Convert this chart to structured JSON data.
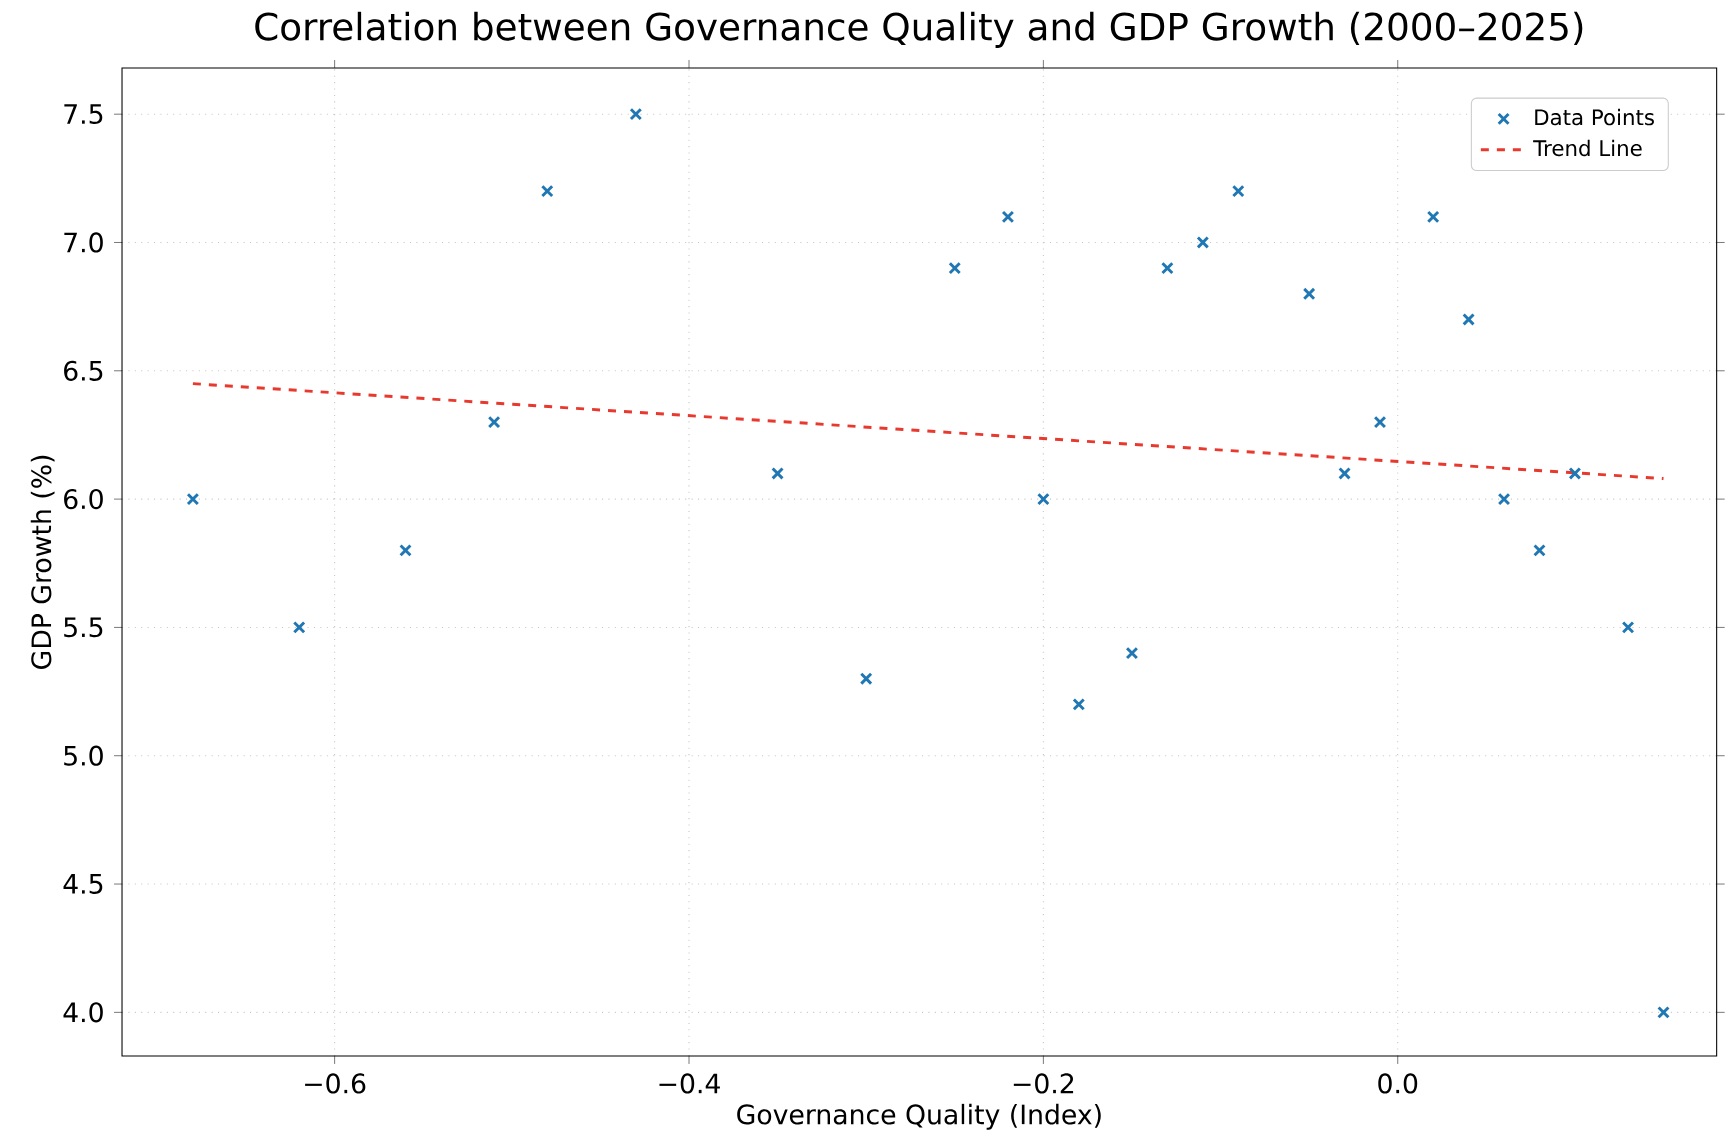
{
  "chart_data": {
    "type": "scatter",
    "title": "Correlation between Governance Quality and GDP Growth (2000–2025)",
    "xlabel": "Governance Quality (Index)",
    "ylabel": "GDP Growth (%)",
    "xlim": [
      -0.72,
      0.18
    ],
    "ylim": [
      3.83,
      7.68
    ],
    "xticks": [
      {
        "value": -0.6,
        "label": "−0.6"
      },
      {
        "value": -0.4,
        "label": "−0.4"
      },
      {
        "value": -0.2,
        "label": "−0.2"
      },
      {
        "value": 0.0,
        "label": "0.0"
      }
    ],
    "yticks": [
      {
        "value": 4.0,
        "label": "4.0"
      },
      {
        "value": 4.5,
        "label": "4.5"
      },
      {
        "value": 5.0,
        "label": "5.0"
      },
      {
        "value": 5.5,
        "label": "5.5"
      },
      {
        "value": 6.0,
        "label": "6.0"
      },
      {
        "value": 6.5,
        "label": "6.5"
      },
      {
        "value": 7.0,
        "label": "7.0"
      },
      {
        "value": 7.5,
        "label": "7.5"
      }
    ],
    "grid": true,
    "legend": "top right",
    "series": [
      {
        "name": "Data Points",
        "marker": "cross",
        "color": "#1f77b4",
        "x": [
          -0.68,
          -0.62,
          -0.56,
          -0.51,
          -0.48,
          -0.43,
          -0.35,
          -0.3,
          -0.25,
          -0.22,
          -0.2,
          -0.18,
          -0.15,
          -0.13,
          -0.11,
          -0.09,
          -0.05,
          -0.03,
          -0.01,
          0.02,
          0.04,
          0.06,
          0.08,
          0.1,
          0.13,
          0.15
        ],
        "values": [
          6.0,
          5.5,
          5.8,
          6.3,
          7.2,
          7.5,
          6.1,
          5.3,
          6.9,
          7.1,
          6.0,
          5.2,
          5.4,
          6.9,
          7.0,
          7.2,
          6.8,
          6.1,
          6.3,
          7.1,
          6.7,
          6.0,
          5.8,
          6.1,
          5.5,
          4.0
        ]
      },
      {
        "name": "Trend Line",
        "type": "line",
        "line_style": "dashed",
        "marker": "none",
        "color": "#e8392f",
        "x": [
          -0.68,
          0.15
        ],
        "values": [
          6.45,
          6.08
        ]
      }
    ]
  }
}
